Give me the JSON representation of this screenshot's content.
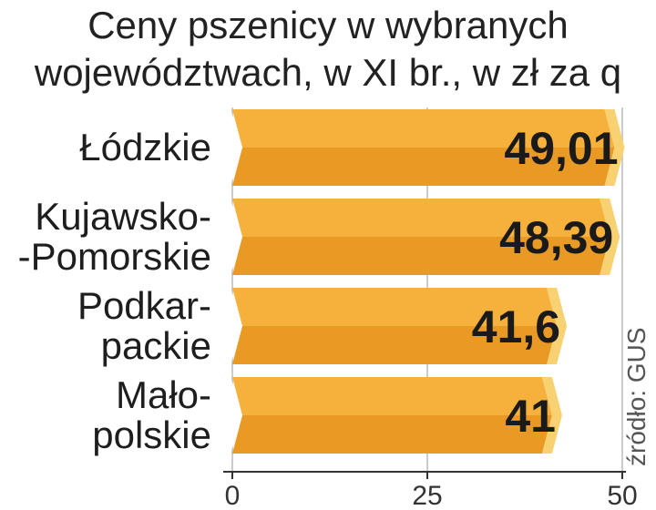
{
  "title_lines": [
    "Ceny pszenicy w wybranych",
    "województwach, w XI br., w zł za q"
  ],
  "source": "źródło: GUS",
  "colors": {
    "bar_top": "#f5b13c",
    "bar_bottom": "#e89a24",
    "bar_end": "#f8d173",
    "grid": "#bbbbbb",
    "axis": "#333333"
  },
  "chart_data": {
    "type": "bar",
    "orientation": "horizontal",
    "title": "Ceny pszenicy w wybranych województwach, w XI br., w zł za q",
    "categories": [
      [
        "Łódzkie"
      ],
      [
        "Kujawsko-",
        "-Pomorskie"
      ],
      [
        "Podkar-",
        "packie"
      ],
      [
        "Mało-",
        "polskie"
      ]
    ],
    "values": [
      49.01,
      48.39,
      41.6,
      41
    ],
    "value_labels": [
      "49,01",
      "48,39",
      "41,6",
      "41"
    ],
    "xlim": [
      0,
      50
    ],
    "ticks": [
      0,
      25,
      50
    ],
    "tick_labels": [
      "0",
      "25",
      "50"
    ],
    "grid": true
  }
}
